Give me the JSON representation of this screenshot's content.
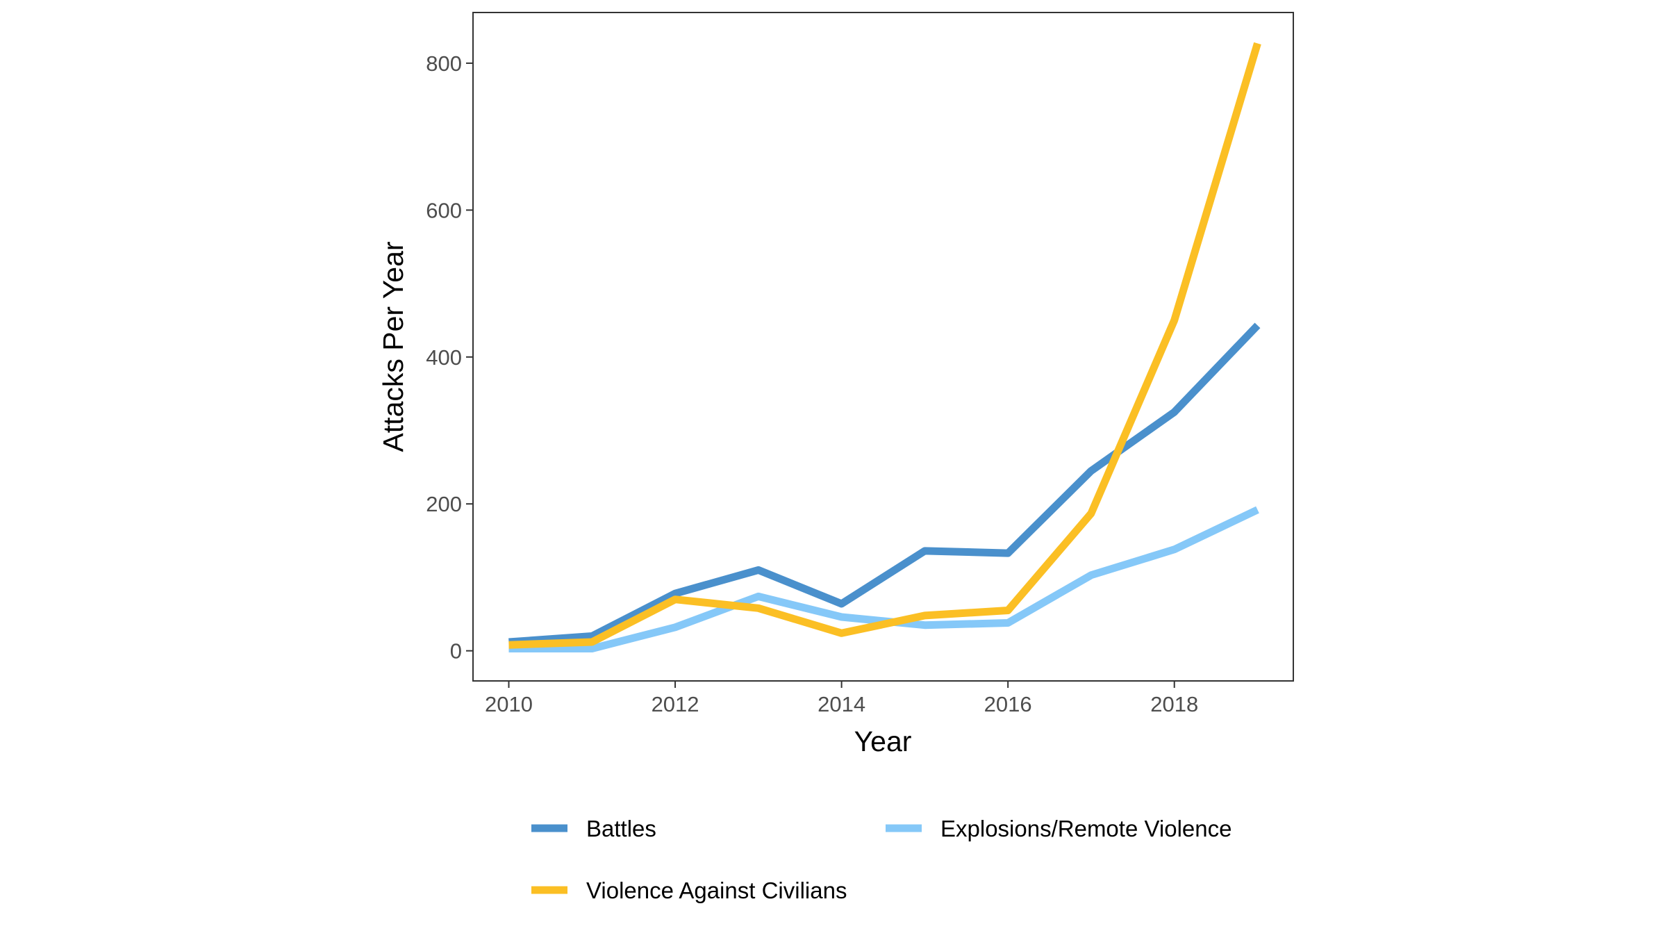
{
  "chart_data": {
    "type": "line",
    "title": "",
    "xlabel": "Year",
    "ylabel": "Attacks Per Year",
    "xlim": [
      2009.57,
      2019.43
    ],
    "ylim": [
      -41,
      869
    ],
    "x_ticks": [
      "2010",
      "2012",
      "2014",
      "2016",
      "2018"
    ],
    "y_ticks": [
      "0",
      "200",
      "400",
      "600",
      "800"
    ],
    "grid": false,
    "legend_position": "bottom",
    "x": [
      2010,
      2011,
      2012,
      2013,
      2014,
      2015,
      2016,
      2017,
      2018,
      2019
    ],
    "series": [
      {
        "name": "Battles",
        "color": "#4a90cc",
        "values": [
          12,
          20,
          78,
          110,
          64,
          136,
          133,
          245,
          325,
          443
        ]
      },
      {
        "name": "Explosions/Remote Violence",
        "color": "#85c8f8",
        "values": [
          3,
          3,
          32,
          74,
          46,
          35,
          38,
          103,
          138,
          192
        ]
      },
      {
        "name": "Violence Against Civilians",
        "color": "#fbbf24",
        "values": [
          8,
          12,
          70,
          58,
          24,
          48,
          55,
          187,
          450,
          827
        ]
      }
    ]
  }
}
